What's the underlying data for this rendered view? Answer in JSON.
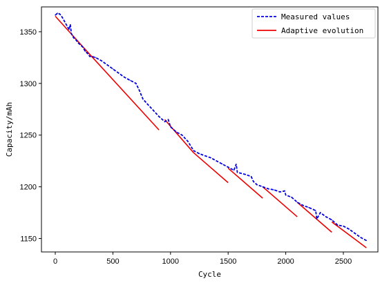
{
  "chart_data": {
    "type": "line",
    "xlabel": "Cycle",
    "ylabel": "Capacity/mAh",
    "xlim": [
      -120,
      2800
    ],
    "ylim": [
      1137,
      1374
    ],
    "x_ticks": [
      0,
      500,
      1000,
      1500,
      2000,
      2500
    ],
    "y_ticks": [
      1150,
      1200,
      1250,
      1300,
      1350
    ],
    "grid": false,
    "legend": {
      "placement": "top-right"
    },
    "series": [
      {
        "name": "Measured values",
        "style": "dashed",
        "color": "#0000dd",
        "points": [
          [
            0,
            1366
          ],
          [
            20,
            1368
          ],
          [
            40,
            1367
          ],
          [
            60,
            1364
          ],
          [
            80,
            1360
          ],
          [
            100,
            1356
          ],
          [
            120,
            1352
          ],
          [
            130,
            1357
          ],
          [
            140,
            1348
          ],
          [
            160,
            1344
          ],
          [
            180,
            1342
          ],
          [
            200,
            1339
          ],
          [
            240,
            1335
          ],
          [
            260,
            1331
          ],
          [
            280,
            1329
          ],
          [
            300,
            1326
          ],
          [
            320,
            1326
          ],
          [
            350,
            1325
          ],
          [
            400,
            1322
          ],
          [
            450,
            1318
          ],
          [
            500,
            1314
          ],
          [
            550,
            1310
          ],
          [
            600,
            1306
          ],
          [
            650,
            1303
          ],
          [
            700,
            1300
          ],
          [
            730,
            1293
          ],
          [
            760,
            1285
          ],
          [
            800,
            1280
          ],
          [
            850,
            1274
          ],
          [
            900,
            1268
          ],
          [
            950,
            1263
          ],
          [
            980,
            1265
          ],
          [
            1000,
            1258
          ],
          [
            1050,
            1253
          ],
          [
            1100,
            1250
          ],
          [
            1150,
            1244
          ],
          [
            1200,
            1235
          ],
          [
            1250,
            1232
          ],
          [
            1300,
            1230
          ],
          [
            1350,
            1228
          ],
          [
            1400,
            1225
          ],
          [
            1450,
            1222
          ],
          [
            1500,
            1219
          ],
          [
            1550,
            1216
          ],
          [
            1570,
            1222
          ],
          [
            1580,
            1214
          ],
          [
            1650,
            1212
          ],
          [
            1700,
            1210
          ],
          [
            1720,
            1205
          ],
          [
            1750,
            1202
          ],
          [
            1800,
            1200
          ],
          [
            1850,
            1198
          ],
          [
            1900,
            1197
          ],
          [
            1950,
            1195
          ],
          [
            1990,
            1196
          ],
          [
            2000,
            1192
          ],
          [
            2050,
            1190
          ],
          [
            2100,
            1185
          ],
          [
            2150,
            1182
          ],
          [
            2200,
            1180
          ],
          [
            2260,
            1177
          ],
          [
            2270,
            1169
          ],
          [
            2300,
            1175
          ],
          [
            2350,
            1171
          ],
          [
            2400,
            1168
          ],
          [
            2450,
            1163
          ],
          [
            2500,
            1162
          ],
          [
            2550,
            1159
          ],
          [
            2600,
            1155
          ],
          [
            2650,
            1151
          ],
          [
            2700,
            1148
          ]
        ]
      },
      {
        "name": "Adaptive evolution",
        "style": "solid",
        "color": "#ee0000",
        "segments": [
          [
            [
              0,
              1365
            ],
            [
              300,
              1328
            ]
          ],
          [
            [
              300,
              1328
            ],
            [
              900,
              1255
            ]
          ],
          [
            [
              950,
              1265
            ],
            [
              1200,
              1233
            ]
          ],
          [
            [
              1200,
              1233
            ],
            [
              1500,
              1204
            ]
          ],
          [
            [
              1500,
              1218
            ],
            [
              1800,
              1189
            ]
          ],
          [
            [
              1800,
              1200
            ],
            [
              2100,
              1171
            ]
          ],
          [
            [
              2100,
              1185
            ],
            [
              2400,
              1156
            ]
          ],
          [
            [
              2400,
              1166
            ],
            [
              2700,
              1141
            ]
          ]
        ]
      }
    ]
  }
}
